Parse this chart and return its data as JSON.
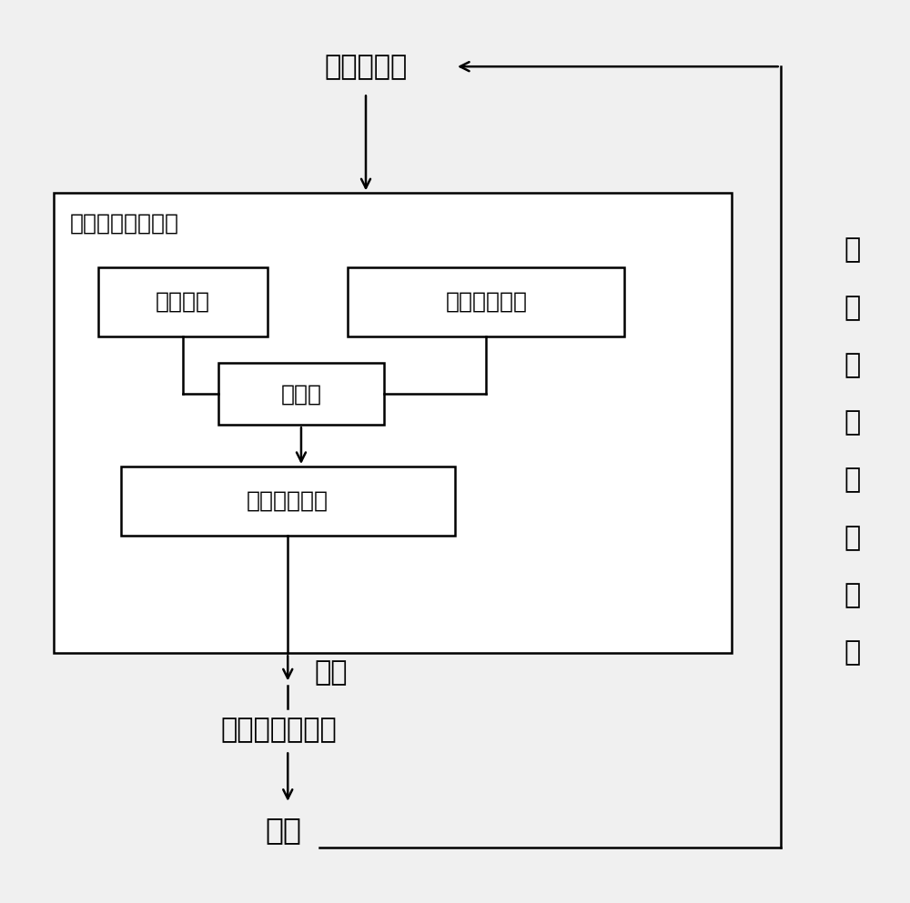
{
  "bg_color": "#f0f0f0",
  "fig_bg": "#f0f0f0",
  "sensor_label": "应变传感器",
  "closed_loop_label": "闭环反馈控制系统",
  "storage_label": "存储单元",
  "compute_label": "运算处理单元",
  "comparator_label": "比较器",
  "control_label": "控制指令单元",
  "open_mold_label": "开模",
  "servo_label": "前螺母伺服电机",
  "close_mold_label": "合模",
  "side_label": "测量四根拉杆应变",
  "font_size": 22,
  "small_font": 18,
  "lw": 1.8
}
